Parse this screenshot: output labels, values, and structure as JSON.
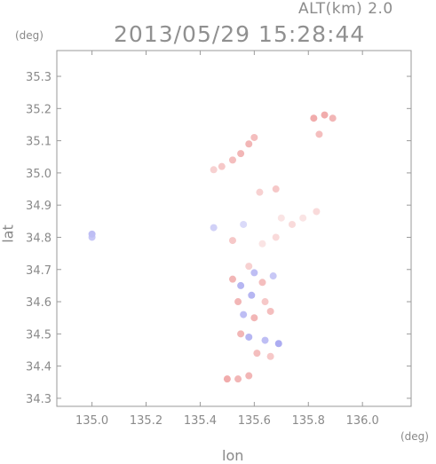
{
  "header": {
    "field_label": "ALT(km)  2.0",
    "timestamp": "2013/05/29  15:28:44"
  },
  "chart_data": {
    "type": "scatter",
    "title": "2013/05/29  15:28:44",
    "subtitle": "ALT(km)  2.0",
    "xlabel": "lon",
    "ylabel": "lat",
    "x_unit": "(deg)",
    "y_unit": "(deg)",
    "xlim": [
      134.87,
      136.18
    ],
    "ylim": [
      34.275,
      35.38
    ],
    "x_ticks": [
      135.0,
      135.2,
      135.4,
      135.6,
      135.8,
      136.0
    ],
    "x_tick_labels": [
      "135.0",
      "135.2",
      "135.4",
      "135.6",
      "135.8",
      "136.0"
    ],
    "y_ticks": [
      34.3,
      34.4,
      34.5,
      34.6,
      34.7,
      34.8,
      34.9,
      35.0,
      35.1,
      35.2,
      35.3
    ],
    "y_tick_labels": [
      "34.3",
      "34.4",
      "34.5",
      "34.6",
      "34.7",
      "34.8",
      "34.9",
      "35.0",
      "35.1",
      "35.2",
      "35.3"
    ],
    "grid": false,
    "color_scale": {
      "positive": "#e87878",
      "negative": "#7878e8"
    },
    "points": [
      {
        "lon": 135.0,
        "lat": 34.81,
        "v": -0.35
      },
      {
        "lon": 135.0,
        "lat": 34.8,
        "v": -0.3
      },
      {
        "lon": 135.52,
        "lat": 35.04,
        "v": 0.35
      },
      {
        "lon": 135.55,
        "lat": 35.06,
        "v": 0.4
      },
      {
        "lon": 135.58,
        "lat": 35.09,
        "v": 0.4
      },
      {
        "lon": 135.6,
        "lat": 35.11,
        "v": 0.35
      },
      {
        "lon": 135.48,
        "lat": 35.02,
        "v": 0.3
      },
      {
        "lon": 135.45,
        "lat": 35.01,
        "v": 0.25
      },
      {
        "lon": 135.86,
        "lat": 35.18,
        "v": 0.45
      },
      {
        "lon": 135.89,
        "lat": 35.17,
        "v": 0.4
      },
      {
        "lon": 135.82,
        "lat": 35.17,
        "v": 0.45
      },
      {
        "lon": 135.84,
        "lat": 35.12,
        "v": 0.35
      },
      {
        "lon": 135.68,
        "lat": 34.95,
        "v": 0.3
      },
      {
        "lon": 135.62,
        "lat": 34.94,
        "v": 0.25
      },
      {
        "lon": 135.7,
        "lat": 34.86,
        "v": 0.15
      },
      {
        "lon": 135.74,
        "lat": 34.84,
        "v": 0.2
      },
      {
        "lon": 135.78,
        "lat": 34.86,
        "v": 0.15
      },
      {
        "lon": 135.83,
        "lat": 34.88,
        "v": 0.2
      },
      {
        "lon": 135.68,
        "lat": 34.8,
        "v": 0.2
      },
      {
        "lon": 135.63,
        "lat": 34.78,
        "v": 0.15
      },
      {
        "lon": 135.56,
        "lat": 34.84,
        "v": -0.2
      },
      {
        "lon": 135.45,
        "lat": 34.83,
        "v": -0.25
      },
      {
        "lon": 135.52,
        "lat": 34.79,
        "v": 0.3
      },
      {
        "lon": 135.58,
        "lat": 34.71,
        "v": 0.25
      },
      {
        "lon": 135.6,
        "lat": 34.69,
        "v": -0.35
      },
      {
        "lon": 135.52,
        "lat": 34.67,
        "v": 0.4
      },
      {
        "lon": 135.55,
        "lat": 34.65,
        "v": -0.4
      },
      {
        "lon": 135.63,
        "lat": 34.66,
        "v": 0.35
      },
      {
        "lon": 135.67,
        "lat": 34.68,
        "v": -0.3
      },
      {
        "lon": 135.54,
        "lat": 34.6,
        "v": 0.4
      },
      {
        "lon": 135.59,
        "lat": 34.62,
        "v": -0.4
      },
      {
        "lon": 135.64,
        "lat": 34.6,
        "v": 0.3
      },
      {
        "lon": 135.56,
        "lat": 34.56,
        "v": -0.35
      },
      {
        "lon": 135.6,
        "lat": 34.55,
        "v": 0.4
      },
      {
        "lon": 135.66,
        "lat": 34.57,
        "v": 0.35
      },
      {
        "lon": 135.55,
        "lat": 34.5,
        "v": 0.4
      },
      {
        "lon": 135.58,
        "lat": 34.49,
        "v": -0.4
      },
      {
        "lon": 135.64,
        "lat": 34.48,
        "v": -0.35
      },
      {
        "lon": 135.66,
        "lat": 34.43,
        "v": 0.3
      },
      {
        "lon": 135.61,
        "lat": 34.44,
        "v": 0.35
      },
      {
        "lon": 135.5,
        "lat": 34.36,
        "v": 0.45
      },
      {
        "lon": 135.54,
        "lat": 34.36,
        "v": 0.4
      },
      {
        "lon": 135.58,
        "lat": 34.37,
        "v": 0.4
      },
      {
        "lon": 135.69,
        "lat": 34.47,
        "v": -0.45
      }
    ]
  }
}
